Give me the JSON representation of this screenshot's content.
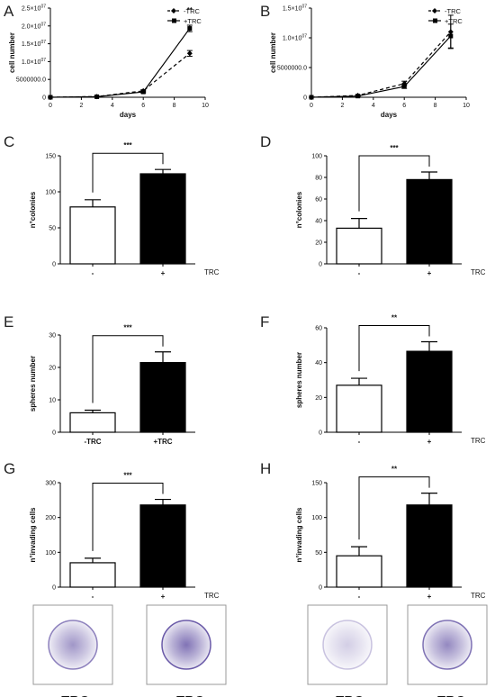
{
  "chart_data": [
    {
      "panel": "A",
      "type": "line",
      "xlabel": "days",
      "ylabel": "cell number",
      "xlim": [
        0,
        10
      ],
      "ylim": [
        0,
        25000000
      ],
      "xticks": [
        "0",
        "2",
        "4",
        "6",
        "8",
        "10"
      ],
      "yticks": [
        {
          "v": 0,
          "label": "0"
        },
        {
          "v": 5000000,
          "label": "5000000.0"
        },
        {
          "v": 10000000,
          "label": "1.0×10^07"
        },
        {
          "v": 15000000,
          "label": "1.5×10^07"
        },
        {
          "v": 20000000,
          "label": "2.0×10^07"
        },
        {
          "v": 25000000,
          "label": "2.5×10^07"
        }
      ],
      "x": [
        0,
        3,
        6,
        9
      ],
      "series": [
        {
          "name": "-TRC",
          "values": [
            0,
            200000,
            1800000,
            12300000
          ],
          "errors": [
            0,
            100000,
            300000,
            800000
          ],
          "style": "dashed",
          "marker": "diamond"
        },
        {
          "name": "+TRC",
          "values": [
            0,
            150000,
            1500000,
            19300000
          ],
          "errors": [
            0,
            100000,
            300000,
            900000
          ],
          "style": "solid",
          "marker": "square"
        }
      ],
      "annotation": "**",
      "legend": "top-right"
    },
    {
      "panel": "B",
      "type": "line",
      "xlabel": "days",
      "ylabel": "cell number",
      "xlim": [
        0,
        10
      ],
      "ylim": [
        0,
        15000000
      ],
      "xticks": [
        "0",
        "2",
        "4",
        "6",
        "8",
        "10"
      ],
      "yticks": [
        {
          "v": 0,
          "label": "0"
        },
        {
          "v": 5000000,
          "label": "5000000.0"
        },
        {
          "v": 10000000,
          "label": "1.0×10^07"
        },
        {
          "v": 15000000,
          "label": "1.5×10^07"
        }
      ],
      "x": [
        0,
        3,
        6,
        9
      ],
      "series": [
        {
          "name": "-TRC",
          "values": [
            0,
            300000,
            2300000,
            11000000
          ],
          "errors": [
            0,
            100000,
            400000,
            2800000
          ],
          "style": "dashed",
          "marker": "diamond"
        },
        {
          "name": "+TRC",
          "values": [
            0,
            200000,
            1800000,
            10300000
          ],
          "errors": [
            0,
            100000,
            300000,
            2000000
          ],
          "style": "solid",
          "marker": "square"
        }
      ],
      "legend": "top-right"
    },
    {
      "panel": "C",
      "type": "bar",
      "ylabel": "n°colonies",
      "ylim": [
        0,
        150
      ],
      "yticks": [
        "0",
        "50",
        "100",
        "150"
      ],
      "categories": [
        "-",
        "+"
      ],
      "values": [
        79,
        125
      ],
      "errors": [
        10,
        6
      ],
      "significance": "***",
      "group_label": "TRC"
    },
    {
      "panel": "D",
      "type": "bar",
      "ylabel": "n°colonies",
      "ylim": [
        0,
        100
      ],
      "yticks": [
        "0",
        "20",
        "40",
        "60",
        "80",
        "100"
      ],
      "categories": [
        "-",
        "+"
      ],
      "values": [
        33,
        78
      ],
      "errors": [
        9,
        7
      ],
      "significance": "***",
      "group_label": "TRC"
    },
    {
      "panel": "E",
      "type": "bar",
      "ylabel": "spheres number",
      "ylim": [
        0,
        30
      ],
      "yticks": [
        "0",
        "10",
        "20",
        "30"
      ],
      "categories": [
        "-TRC",
        "+TRC"
      ],
      "values": [
        6,
        21.5
      ],
      "errors": [
        0.8,
        3.3
      ],
      "significance": "***",
      "group_label": ""
    },
    {
      "panel": "F",
      "type": "bar",
      "ylabel": "spheres number",
      "ylim": [
        0,
        60
      ],
      "yticks": [
        "0",
        "20",
        "40",
        "60"
      ],
      "categories": [
        "-",
        "+"
      ],
      "values": [
        27,
        46.5
      ],
      "errors": [
        4,
        5.5
      ],
      "significance": "**",
      "group_label": "TRC"
    },
    {
      "panel": "G",
      "type": "bar",
      "ylabel": "n°invading cells",
      "ylim": [
        0,
        300
      ],
      "yticks": [
        "0",
        "100",
        "200",
        "300"
      ],
      "categories": [
        "-",
        "+"
      ],
      "values": [
        70,
        236
      ],
      "errors": [
        13,
        16
      ],
      "significance": "***",
      "group_label": "TRC"
    },
    {
      "panel": "H",
      "type": "bar",
      "ylabel": "n°invading cells",
      "ylim": [
        0,
        150
      ],
      "yticks": [
        "0",
        "50",
        "100",
        "150"
      ],
      "categories": [
        "-",
        "+"
      ],
      "values": [
        45,
        118
      ],
      "errors": [
        13,
        17
      ],
      "significance": "**",
      "group_label": "TRC"
    }
  ],
  "micrographs": {
    "left": [
      "-TRC",
      "+TRC"
    ],
    "right": [
      "-TRC",
      "+TRC"
    ]
  },
  "colors": {
    "bar_control": "#ffffff",
    "bar_treated": "#000000",
    "stain": "#6a5aa8"
  }
}
